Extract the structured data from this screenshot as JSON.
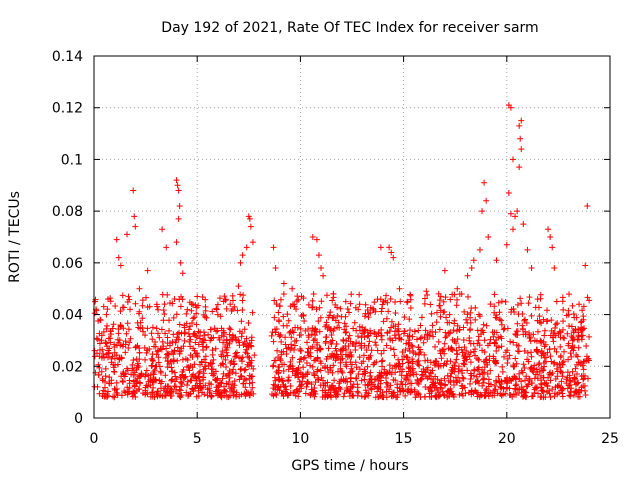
{
  "chart_data": {
    "type": "scatter",
    "title": "Day 192 of 2021, Rate Of TEC Index for receiver sarm",
    "xlabel": "GPS time / hours",
    "ylabel": "ROTI / TECUs",
    "xlim": [
      0,
      25
    ],
    "ylim": [
      0,
      0.14
    ],
    "xticks": [
      0,
      5,
      10,
      15,
      20,
      25
    ],
    "xtick_labels": [
      "0",
      "5",
      "10",
      "15",
      "20",
      "25"
    ],
    "yticks": [
      0,
      0.02,
      0.04,
      0.06,
      0.08,
      0.1,
      0.12,
      0.14
    ],
    "ytick_labels": [
      "0",
      "0.02",
      "0.04",
      "0.06",
      "0.08",
      "0.1",
      "0.12",
      "0.14"
    ],
    "grid": true,
    "marker": "plus",
    "marker_color": "#ff0000",
    "data_gap_hours": [
      7.8,
      8.6
    ],
    "data_range_hours": [
      0,
      24
    ],
    "typical_band": [
      0.008,
      0.035
    ],
    "series": [
      {
        "name": "ROTI",
        "points": [
          [
            0.05,
            0.045
          ],
          [
            0.3,
            0.038
          ],
          [
            0.6,
            0.04
          ],
          [
            1.1,
            0.069
          ],
          [
            1.2,
            0.062
          ],
          [
            1.3,
            0.059
          ],
          [
            1.6,
            0.071
          ],
          [
            1.9,
            0.088
          ],
          [
            1.95,
            0.078
          ],
          [
            2.0,
            0.074
          ],
          [
            2.2,
            0.05
          ],
          [
            2.6,
            0.057
          ],
          [
            3.3,
            0.073
          ],
          [
            3.5,
            0.066
          ],
          [
            4.0,
            0.092
          ],
          [
            4.05,
            0.09
          ],
          [
            4.1,
            0.088
          ],
          [
            4.15,
            0.082
          ],
          [
            4.1,
            0.077
          ],
          [
            4.0,
            0.068
          ],
          [
            4.2,
            0.06
          ],
          [
            4.3,
            0.056
          ],
          [
            5.0,
            0.047
          ],
          [
            5.4,
            0.043
          ],
          [
            6.0,
            0.04
          ],
          [
            6.6,
            0.044
          ],
          [
            7.0,
            0.051
          ],
          [
            7.1,
            0.06
          ],
          [
            7.2,
            0.063
          ],
          [
            7.4,
            0.066
          ],
          [
            7.5,
            0.078
          ],
          [
            7.55,
            0.077
          ],
          [
            7.6,
            0.074
          ],
          [
            7.7,
            0.068
          ],
          [
            8.7,
            0.066
          ],
          [
            8.8,
            0.058
          ],
          [
            9.2,
            0.052
          ],
          [
            9.6,
            0.05
          ],
          [
            10.6,
            0.07
          ],
          [
            10.8,
            0.069
          ],
          [
            10.9,
            0.063
          ],
          [
            11.0,
            0.058
          ],
          [
            11.1,
            0.055
          ],
          [
            11.6,
            0.048
          ],
          [
            12.2,
            0.045
          ],
          [
            12.8,
            0.042
          ],
          [
            13.3,
            0.039
          ],
          [
            13.9,
            0.066
          ],
          [
            14.3,
            0.066
          ],
          [
            14.4,
            0.064
          ],
          [
            14.5,
            0.062
          ],
          [
            14.8,
            0.05
          ],
          [
            15.2,
            0.045
          ],
          [
            16.1,
            0.049
          ],
          [
            16.7,
            0.048
          ],
          [
            17.0,
            0.057
          ],
          [
            17.6,
            0.05
          ],
          [
            18.1,
            0.055
          ],
          [
            18.3,
            0.058
          ],
          [
            18.4,
            0.061
          ],
          [
            18.7,
            0.065
          ],
          [
            18.8,
            0.08
          ],
          [
            18.9,
            0.091
          ],
          [
            19.0,
            0.084
          ],
          [
            19.1,
            0.07
          ],
          [
            19.5,
            0.061
          ],
          [
            20.0,
            0.067
          ],
          [
            20.1,
            0.121
          ],
          [
            20.2,
            0.12
          ],
          [
            20.3,
            0.1
          ],
          [
            20.1,
            0.087
          ],
          [
            20.2,
            0.079
          ],
          [
            20.3,
            0.073
          ],
          [
            20.4,
            0.078
          ],
          [
            20.5,
            0.08
          ],
          [
            20.6,
            0.113
          ],
          [
            20.7,
            0.115
          ],
          [
            20.65,
            0.108
          ],
          [
            20.7,
            0.104
          ],
          [
            20.6,
            0.097
          ],
          [
            20.8,
            0.075
          ],
          [
            21.0,
            0.065
          ],
          [
            21.2,
            0.058
          ],
          [
            22.0,
            0.073
          ],
          [
            22.1,
            0.07
          ],
          [
            22.2,
            0.066
          ],
          [
            22.3,
            0.058
          ],
          [
            23.0,
            0.04
          ],
          [
            23.5,
            0.044
          ],
          [
            23.8,
            0.059
          ],
          [
            23.9,
            0.082
          ]
        ]
      }
    ]
  }
}
